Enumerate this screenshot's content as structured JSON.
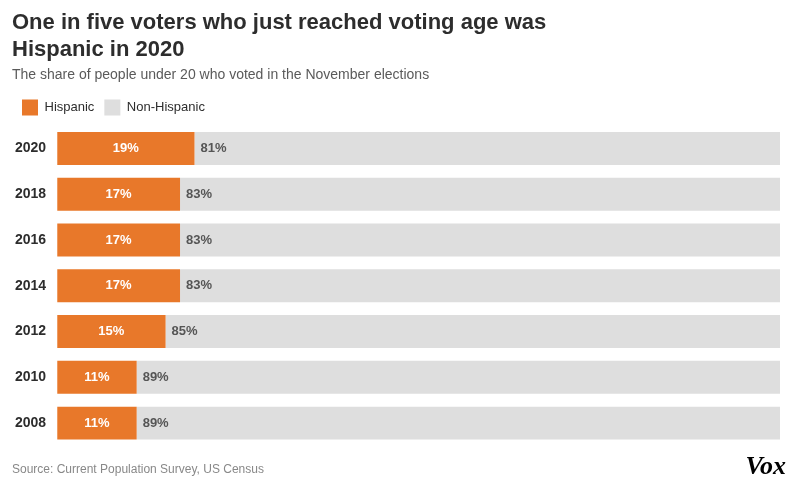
{
  "chart_data": {
    "type": "bar",
    "orientation": "horizontal",
    "stacked": true,
    "title": [
      "One in five voters who just reached voting age was",
      "Hispanic in 2020"
    ],
    "subtitle": "The share of people under 20 who voted in the November elections",
    "categories": [
      "2020",
      "2018",
      "2016",
      "2014",
      "2012",
      "2010",
      "2008"
    ],
    "series": [
      {
        "name": "Hispanic",
        "color": "#E8782A",
        "values": [
          19,
          17,
          17,
          17,
          15,
          11,
          11
        ],
        "value_labels": [
          "19%",
          "17%",
          "17%",
          "17%",
          "15%",
          "11%",
          "11%"
        ]
      },
      {
        "name": "Non-Hispanic",
        "color": "#DEDEDE",
        "values": [
          81,
          83,
          83,
          83,
          85,
          89,
          89
        ],
        "value_labels": [
          "81%",
          "83%",
          "83%",
          "83%",
          "85%",
          "89%",
          "89%"
        ]
      }
    ],
    "xlim": [
      0,
      100
    ],
    "tick_labels": "y",
    "grid": false,
    "legend": "top left",
    "data_labels": true,
    "annotations": [
      "Source: Current Population Survey, US Census",
      "Vox"
    ]
  }
}
